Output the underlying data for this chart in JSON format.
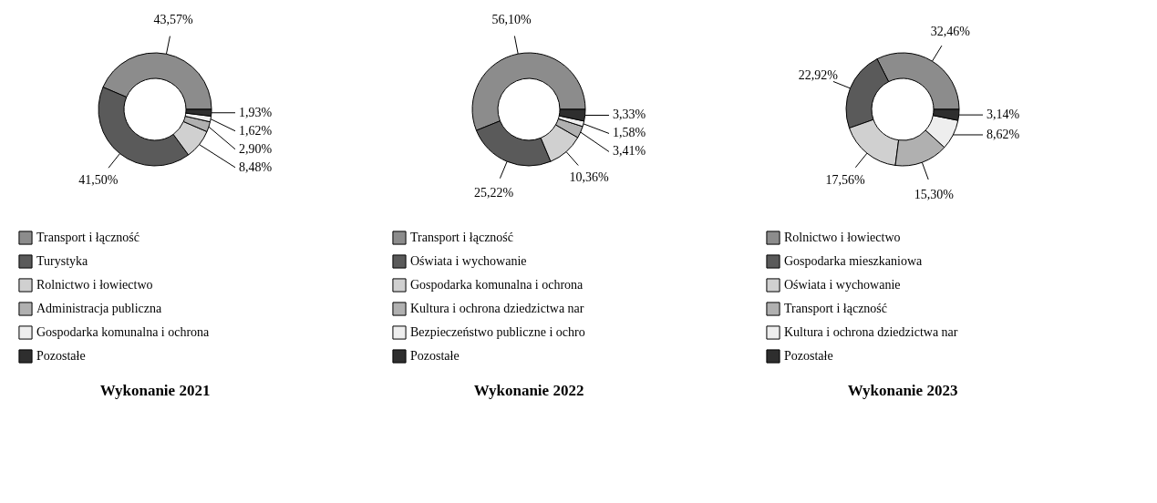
{
  "chart_data": [
    {
      "type": "donut",
      "title": "Wykonanie 2021",
      "legend": "bottom",
      "categories": [
        "Transport i łączność",
        "Turystyka",
        "Rolnictwo i łowiectwo",
        "Administracja publiczna",
        "Gospodarka komunalna i ochrona",
        "Pozostałe"
      ],
      "values": [
        43.57,
        41.5,
        8.48,
        2.9,
        1.62,
        1.93
      ],
      "value_labels": [
        "43,57%",
        "41,50%",
        "8,48%",
        "2,90%",
        "1,62%",
        "1,93%"
      ],
      "colors": [
        "#8c8c8c",
        "#5a5a5a",
        "#d0d0d0",
        "#b0b0b0",
        "#eeeeee",
        "#2e2e2e"
      ]
    },
    {
      "type": "donut",
      "title": "Wykonanie 2022",
      "legend": "bottom",
      "categories": [
        "Transport i łączność",
        "Oświata i wychowanie",
        "Gospodarka komunalna i ochrona",
        "Kultura i ochrona dziedzictwa nar",
        "Bezpieczeństwo publiczne i ochro",
        "Pozostałe"
      ],
      "values": [
        56.1,
        25.22,
        10.36,
        3.41,
        1.58,
        3.33
      ],
      "value_labels": [
        "56,10%",
        "25,22%",
        "10,36%",
        "3,41%",
        "1,58%",
        "3,33%"
      ],
      "colors": [
        "#8c8c8c",
        "#5a5a5a",
        "#d0d0d0",
        "#b0b0b0",
        "#eeeeee",
        "#2e2e2e"
      ]
    },
    {
      "type": "donut",
      "title": "Wykonanie 2023",
      "legend": "bottom",
      "categories": [
        "Rolnictwo i łowiectwo",
        "Gospodarka mieszkaniowa",
        "Oświata i wychowanie",
        "Transport i łączność",
        "Kultura i ochrona dziedzictwa nar",
        "Pozostałe"
      ],
      "values": [
        32.46,
        22.92,
        17.56,
        15.3,
        8.62,
        3.14
      ],
      "value_labels": [
        "32,46%",
        "22,92%",
        "17,56%",
        "15,30%",
        "8,62%",
        "3,14%"
      ],
      "colors": [
        "#8c8c8c",
        "#5a5a5a",
        "#d0d0d0",
        "#b0b0b0",
        "#eeeeee",
        "#2e2e2e"
      ]
    }
  ]
}
